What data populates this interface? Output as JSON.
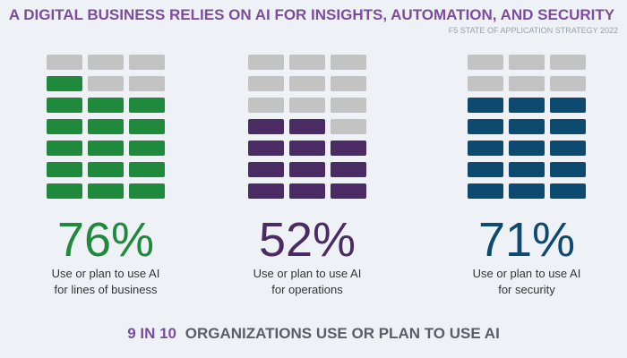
{
  "chart_data": {
    "type": "waffle",
    "title": "A DIGITAL BUSINESS RELIES ON AI FOR INSIGHTS, AUTOMATION, AND SECURITY",
    "subtitle": "F5 STATE OF APPLICATION STRATEGY 2022",
    "series": [
      {
        "name": [
          "Use or plan to use AI",
          "for lines of business"
        ],
        "color": "#1f8a3b",
        "values": [
          76
        ],
        "value_labels": [
          "76%"
        ]
      },
      {
        "name": [
          "Use or plan to use AI",
          "for operations"
        ],
        "color": "#4a2b63",
        "values": [
          52
        ],
        "value_labels": [
          "52%"
        ]
      },
      {
        "name": [
          "Use or plan to use AI",
          "for security"
        ],
        "color": "#0d4a70",
        "values": [
          71
        ],
        "value_labels": [
          "71%"
        ]
      }
    ],
    "empty_color": "#c3c3c3",
    "footer": {
      "highlight": "9 IN 10",
      "text": "ORGANIZATIONS USE OR PLAN TO USE AI"
    }
  }
}
